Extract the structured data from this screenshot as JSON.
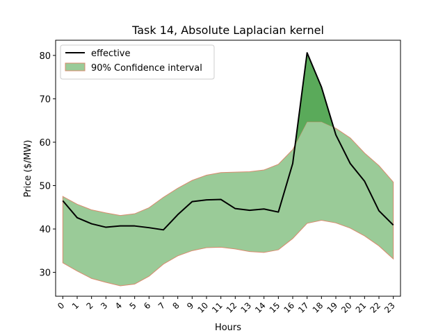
{
  "chart_data": {
    "type": "area",
    "title": "Task 14, Absolute Laplacian kernel",
    "xlabel": "Hours",
    "ylabel": "Price ($/MW)",
    "categories": [
      "0",
      "1",
      "2",
      "3",
      "4",
      "5",
      "6",
      "7",
      "8",
      "9",
      "10",
      "11",
      "12",
      "13",
      "14",
      "15",
      "16",
      "17",
      "18",
      "19",
      "20",
      "21",
      "22",
      "23"
    ],
    "ylim": [
      24.5,
      83.5
    ],
    "yticks": [
      30,
      40,
      50,
      60,
      70,
      80
    ],
    "grid": false,
    "legend_position": "upper-left",
    "series": [
      {
        "name": "effective",
        "kind": "line",
        "color": "#000000",
        "values": [
          46.5,
          42.6,
          41.2,
          40.4,
          40.7,
          40.7,
          40.3,
          39.8,
          43.3,
          46.3,
          46.7,
          46.8,
          44.7,
          44.3,
          44.6,
          43.9,
          55.1,
          80.6,
          72.7,
          61.7,
          55.1,
          51.0,
          44.2,
          40.9
        ]
      },
      {
        "name": "90% Confidence interval",
        "kind": "band",
        "fill": "#9acb98",
        "edge": "#d98a6d",
        "lower": [
          32.2,
          30.3,
          28.6,
          27.7,
          26.9,
          27.3,
          29.1,
          31.9,
          33.8,
          35.0,
          35.7,
          35.8,
          35.4,
          34.8,
          34.6,
          35.2,
          37.8,
          41.3,
          42.0,
          41.4,
          40.2,
          38.4,
          36.1,
          33.1
        ],
        "upper": [
          47.5,
          45.7,
          44.4,
          43.7,
          43.1,
          43.5,
          44.9,
          47.3,
          49.4,
          51.2,
          52.4,
          53.0,
          53.1,
          53.2,
          53.6,
          54.9,
          58.3,
          64.7,
          64.7,
          63.2,
          61.0,
          57.5,
          54.6,
          50.8
        ]
      }
    ],
    "overflow_fill": "#5aaa5a"
  }
}
